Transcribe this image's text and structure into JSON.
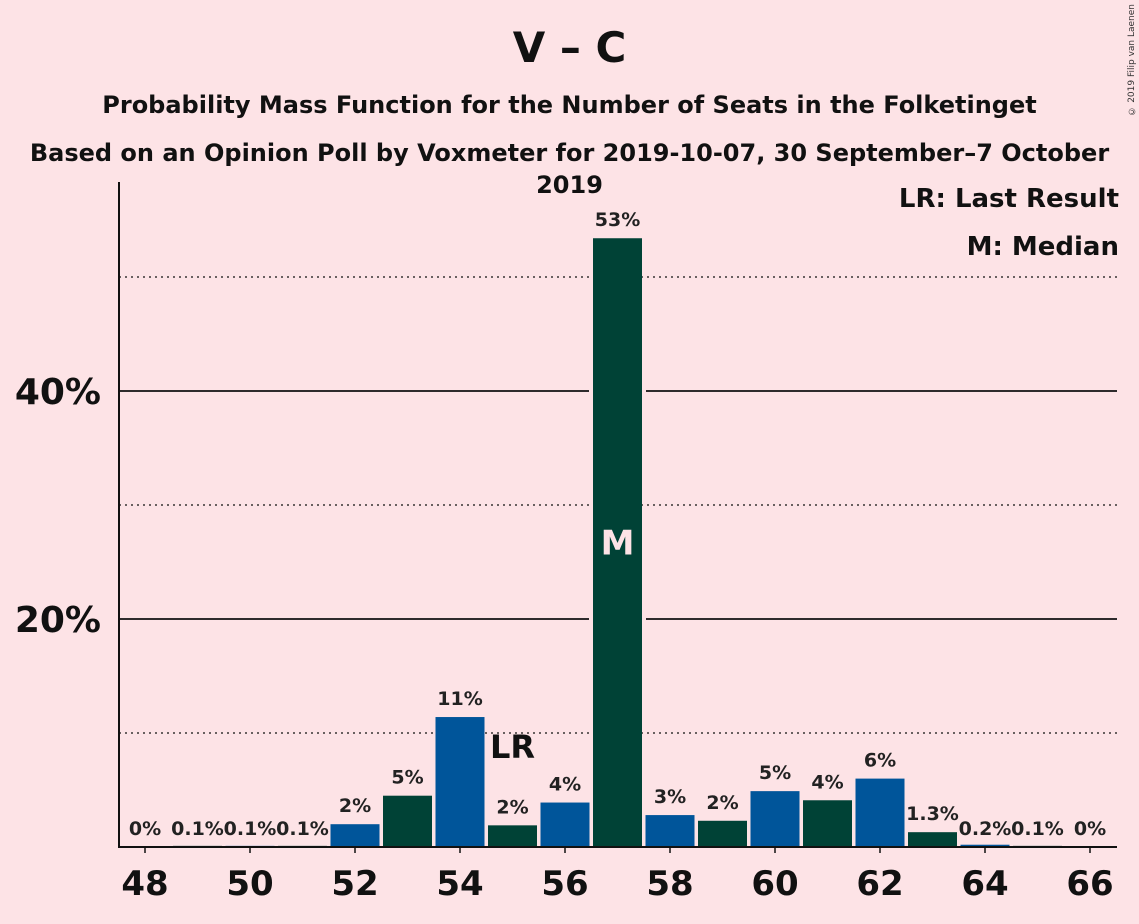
{
  "header": {
    "title": "V – C",
    "subtitle": "Probability Mass Function for the Number of Seats in the Folketinget",
    "subtitle2": "Based on an Opinion Poll by Voxmeter for 2019-10-07, 30 September–7 October 2019",
    "copyright": "© 2019 Filip van Laenen"
  },
  "legend": {
    "lr": "LR: Last Result",
    "m": "M: Median"
  },
  "colors": {
    "background": "#FDE3E6",
    "blue": "#00559A",
    "green": "#004236",
    "line": "#111111"
  },
  "chart_data": {
    "type": "bar",
    "xlabel": "",
    "ylabel": "",
    "ylim": [
      0,
      58
    ],
    "x_ticks": [
      "48",
      "50",
      "52",
      "54",
      "56",
      "58",
      "60",
      "62",
      "64",
      "66"
    ],
    "y_ticks": [
      {
        "value": 20,
        "label": "20%"
      },
      {
        "value": 40,
        "label": "40%"
      }
    ],
    "y_dotted": [
      10,
      30,
      50
    ],
    "last_result_seat": 55,
    "last_result_label": "LR",
    "median_seat": 57,
    "median_label": "M",
    "bars": [
      {
        "seat": 48,
        "value": 0,
        "label": "0%",
        "color": "blue"
      },
      {
        "seat": 49,
        "value": 0.1,
        "label": "0.1%",
        "color": "green"
      },
      {
        "seat": 50,
        "value": 0.1,
        "label": "0.1%",
        "color": "blue"
      },
      {
        "seat": 51,
        "value": 0.1,
        "label": "0.1%",
        "color": "green"
      },
      {
        "seat": 52,
        "value": 2.0,
        "label": "2%",
        "color": "blue"
      },
      {
        "seat": 53,
        "value": 4.5,
        "label": "5%",
        "color": "green"
      },
      {
        "seat": 54,
        "value": 11.4,
        "label": "11%",
        "color": "blue"
      },
      {
        "seat": 55,
        "value": 1.9,
        "label": "2%",
        "color": "green"
      },
      {
        "seat": 56,
        "value": 3.9,
        "label": "4%",
        "color": "blue"
      },
      {
        "seat": 57,
        "value": 53.4,
        "label": "53%",
        "color": "green"
      },
      {
        "seat": 58,
        "value": 2.8,
        "label": "3%",
        "color": "blue"
      },
      {
        "seat": 59,
        "value": 2.3,
        "label": "2%",
        "color": "green"
      },
      {
        "seat": 60,
        "value": 4.9,
        "label": "5%",
        "color": "blue"
      },
      {
        "seat": 61,
        "value": 4.1,
        "label": "4%",
        "color": "green"
      },
      {
        "seat": 62,
        "value": 6.0,
        "label": "6%",
        "color": "blue"
      },
      {
        "seat": 63,
        "value": 1.3,
        "label": "1.3%",
        "color": "green"
      },
      {
        "seat": 64,
        "value": 0.2,
        "label": "0.2%",
        "color": "blue"
      },
      {
        "seat": 65,
        "value": 0.1,
        "label": "0.1%",
        "color": "green"
      },
      {
        "seat": 66,
        "value": 0,
        "label": "0%",
        "color": "blue"
      }
    ]
  }
}
